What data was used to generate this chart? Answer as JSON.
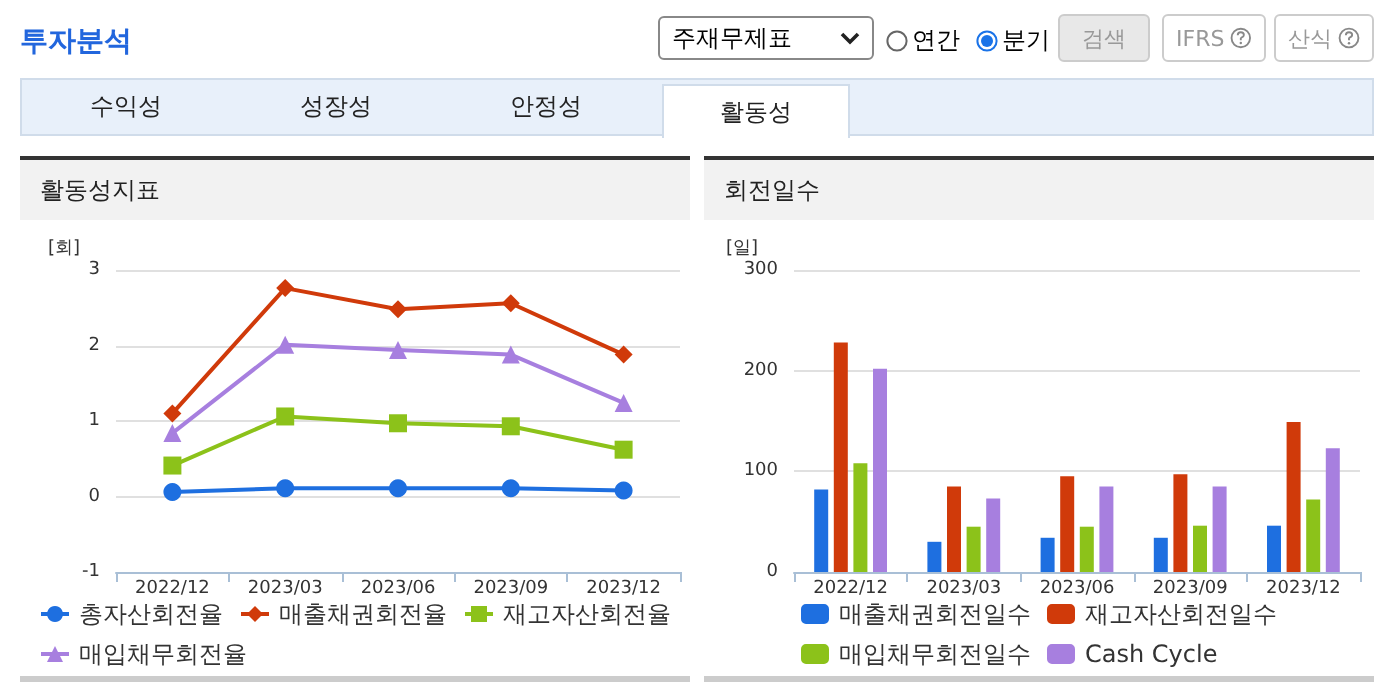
{
  "chart_data": [
    {
      "type": "other",
      "annotations": [
        "투자분석",
        "주재무제표",
        "연간",
        "분기",
        "검색",
        "IFRS",
        "산식",
        "수익성",
        "성장성",
        "안정성",
        "활동성"
      ]
    },
    {
      "type": "line",
      "title": "활동성지표",
      "ylabel": "[회]",
      "categories": [
        "2022/12",
        "2023/03",
        "2023/06",
        "2023/09",
        "2023/12"
      ],
      "ylim": [
        -1,
        3
      ],
      "yticks": [
        -1,
        0,
        1,
        2,
        3
      ],
      "grid": "y",
      "legend": "bottom",
      "series": [
        {
          "name": "총자산회전율",
          "color": "#1e6fe0",
          "marker": "circle",
          "values": [
            0.06,
            0.11,
            0.11,
            0.11,
            0.08
          ]
        },
        {
          "name": "매출채권회전율",
          "color": "#d03a0a",
          "marker": "diamond",
          "values": [
            1.1,
            2.76,
            2.48,
            2.56,
            1.88
          ]
        },
        {
          "name": "재고자산회전율",
          "color": "#8cc21a",
          "marker": "square",
          "values": [
            0.41,
            1.06,
            0.97,
            0.93,
            0.62
          ]
        },
        {
          "name": "매입채무회전율",
          "color": "#a77fdf",
          "marker": "triangle",
          "values": [
            0.84,
            2.01,
            1.94,
            1.88,
            1.24
          ]
        }
      ]
    },
    {
      "type": "bar",
      "title": "회전일수",
      "ylabel": "[일]",
      "categories": [
        "2022/12",
        "2023/03",
        "2023/06",
        "2023/09",
        "2023/12"
      ],
      "ylim": [
        0,
        300
      ],
      "yticks": [
        0,
        100,
        200,
        300
      ],
      "grid": "y",
      "legend": "bottom",
      "series": [
        {
          "name": "매출채권회전일수",
          "color": "#1e6fe0",
          "values": [
            82,
            30,
            34,
            34,
            46
          ]
        },
        {
          "name": "재고자산회전일수",
          "color": "#d03a0a",
          "values": [
            228,
            85,
            95,
            97,
            149
          ]
        },
        {
          "name": "매입채무회전일수",
          "color": "#8cc21a",
          "values": [
            108,
            45,
            45,
            46,
            72
          ]
        },
        {
          "name": "Cash Cycle",
          "color": "#a77fdf",
          "values": [
            202,
            73,
            85,
            85,
            123
          ]
        }
      ]
    }
  ]
}
